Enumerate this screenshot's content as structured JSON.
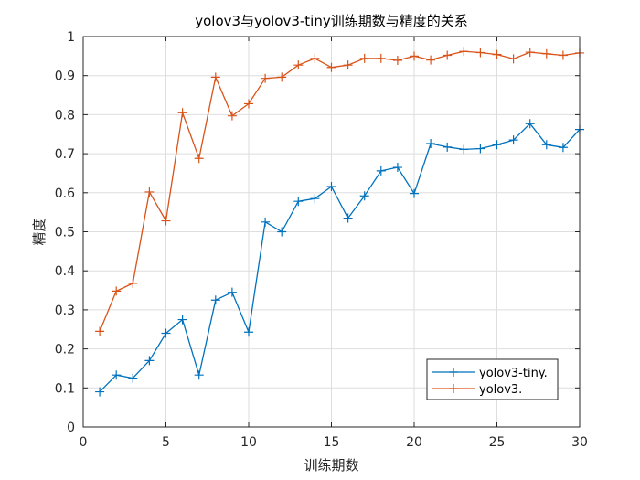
{
  "chart_data": {
    "type": "line",
    "title": "yolov3与yolov3-tiny训练期数与精度的关系",
    "xlabel": "训练期数",
    "ylabel": "精度",
    "xlim": [
      0,
      30
    ],
    "ylim": [
      0,
      1
    ],
    "xticks": [
      0,
      5,
      10,
      15,
      20,
      25,
      30
    ],
    "yticks": [
      0,
      0.1,
      0.2,
      0.3,
      0.4,
      0.5,
      0.6,
      0.7,
      0.8,
      0.9,
      1
    ],
    "xtick_labels": [
      "0",
      "5",
      "10",
      "15",
      "20",
      "25",
      "30"
    ],
    "ytick_labels": [
      "0",
      "0.1",
      "0.2",
      "0.3",
      "0.4",
      "0.5",
      "0.6",
      "0.7",
      "0.8",
      "0.9",
      "1"
    ],
    "grid": true,
    "legend_position": "bottom-right",
    "marker": "+",
    "series": [
      {
        "name": "yolov3-tiny.",
        "color": "#0072BD",
        "x": [
          1,
          2,
          3,
          4,
          5,
          6,
          7,
          8,
          9,
          10,
          11,
          12,
          13,
          14,
          15,
          16,
          17,
          18,
          19,
          20,
          21,
          22,
          23,
          24,
          25,
          26,
          27,
          28,
          29,
          30
        ],
        "values": [
          0.09,
          0.133,
          0.125,
          0.17,
          0.24,
          0.275,
          0.133,
          0.325,
          0.345,
          0.243,
          0.525,
          0.5,
          0.578,
          0.585,
          0.616,
          0.535,
          0.592,
          0.656,
          0.665,
          0.598,
          0.726,
          0.717,
          0.711,
          0.713,
          0.723,
          0.735,
          0.777,
          0.723,
          0.716,
          0.762
        ]
      },
      {
        "name": "yolov3.",
        "color": "#D95319",
        "x": [
          1,
          2,
          3,
          4,
          5,
          6,
          7,
          8,
          9,
          10,
          11,
          12,
          13,
          14,
          15,
          16,
          17,
          18,
          19,
          20,
          21,
          22,
          23,
          24,
          25,
          26,
          27,
          28,
          29,
          30
        ],
        "values": [
          0.245,
          0.348,
          0.368,
          0.602,
          0.528,
          0.805,
          0.688,
          0.896,
          0.797,
          0.828,
          0.893,
          0.896,
          0.927,
          0.944,
          0.921,
          0.927,
          0.944,
          0.944,
          0.939,
          0.95,
          0.94,
          0.952,
          0.962,
          0.959,
          0.954,
          0.943,
          0.96,
          0.956,
          0.952,
          0.958
        ]
      }
    ]
  }
}
